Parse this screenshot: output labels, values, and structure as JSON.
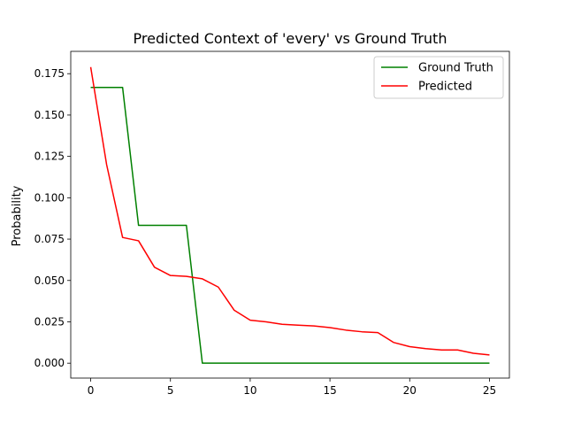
{
  "chart_data": {
    "type": "line",
    "title": "Predicted Context of 'every' vs Ground Truth",
    "xlabel": "",
    "ylabel": "Probability",
    "xlim": [
      -1.25,
      26.25
    ],
    "ylim": [
      -0.009,
      0.1885
    ],
    "xticks": [
      0,
      5,
      10,
      15,
      20,
      25
    ],
    "xtick_labels": [
      "0",
      "5",
      "10",
      "15",
      "20",
      "25"
    ],
    "yticks": [
      0.0,
      0.025,
      0.05,
      0.075,
      0.1,
      0.125,
      0.15,
      0.175
    ],
    "ytick_labels": [
      "0.000",
      "0.025",
      "0.050",
      "0.075",
      "0.100",
      "0.125",
      "0.150",
      "0.175"
    ],
    "grid": false,
    "legend_position": "upper right",
    "x": [
      0,
      1,
      2,
      3,
      4,
      5,
      6,
      7,
      8,
      9,
      10,
      11,
      12,
      13,
      14,
      15,
      16,
      17,
      18,
      19,
      20,
      21,
      22,
      23,
      24,
      25
    ],
    "series": [
      {
        "name": "Ground Truth",
        "color": "#008000",
        "values": [
          0.1667,
          0.1667,
          0.1667,
          0.0833,
          0.0833,
          0.0833,
          0.0833,
          0.0,
          0.0,
          0.0,
          0.0,
          0.0,
          0.0,
          0.0,
          0.0,
          0.0,
          0.0,
          0.0,
          0.0,
          0.0,
          0.0,
          0.0,
          0.0,
          0.0,
          0.0,
          0.0
        ]
      },
      {
        "name": "Predicted",
        "color": "#ff0000",
        "values": [
          0.179,
          0.12,
          0.076,
          0.074,
          0.058,
          0.053,
          0.0525,
          0.051,
          0.046,
          0.032,
          0.026,
          0.025,
          0.0235,
          0.023,
          0.0225,
          0.0215,
          0.02,
          0.019,
          0.0185,
          0.0125,
          0.01,
          0.0088,
          0.008,
          0.008,
          0.006,
          0.005
        ]
      }
    ]
  }
}
